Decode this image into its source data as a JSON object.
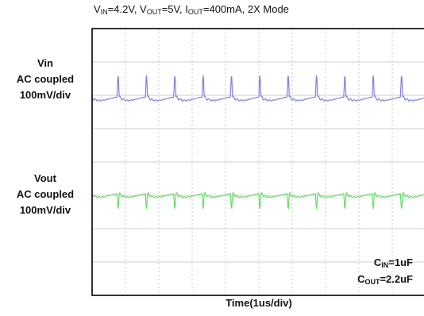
{
  "chart_data": {
    "type": "line",
    "title_parts": {
      "vin_sym": "V",
      "vin_sub": "IN",
      "vin_val": "=4.2V, ",
      "vout_sym": "V",
      "vout_sub": "OUT",
      "vout_val": "=5V, ",
      "iout_sym": "I",
      "iout_sub": "OUT",
      "iout_val": "=400mA, 2X Mode"
    },
    "xlabel": "Time(1us/div)",
    "xlim": [
      0,
      10
    ],
    "grid": true,
    "series": [
      {
        "name_lines": [
          "Vin",
          "AC coupled",
          "100mV/div"
        ],
        "color": "#8080e0",
        "period_us": 0.85,
        "baseline_div": 0,
        "spike_div": 0.65,
        "dip_div": -0.2,
        "units_per_div": "100mV/div"
      },
      {
        "name_lines": [
          "Vout",
          "AC coupled",
          "100mV/div"
        ],
        "color": "#66dd66",
        "period_us": 0.85,
        "baseline_div": 0.15,
        "spike_div": -0.45,
        "dip_div": -0.2,
        "units_per_div": "100mV/div"
      }
    ],
    "annotations": {
      "cin_sym": "C",
      "cin_sub": "IN",
      "cin_val": "=1uF",
      "cout_sym": "C",
      "cout_sub": "OUT",
      "cout_val": "=2.2uF"
    }
  }
}
